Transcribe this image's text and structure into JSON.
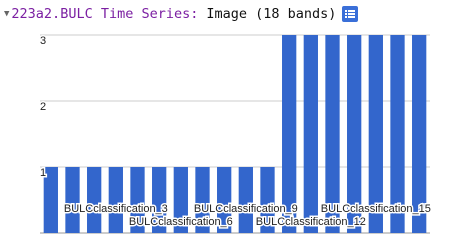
{
  "header": {
    "title": "223a2.BULC Time Series:",
    "description": "Image (18 bands)"
  },
  "chart_data": {
    "type": "bar",
    "categories": [
      null,
      null,
      null,
      "BULCclassification_3",
      null,
      null,
      "BULCclassification_6",
      null,
      null,
      "BULCclassification_9",
      null,
      null,
      "BULCclassification_12",
      null,
      null,
      "BULCclassification_15",
      null,
      null
    ],
    "values": [
      1,
      1,
      1,
      1,
      1,
      1,
      1,
      1,
      1,
      1,
      1,
      3,
      3,
      3,
      3,
      3,
      3,
      3
    ],
    "color": "#3366cc",
    "ylim": [
      0,
      3
    ],
    "yticks": [
      1,
      2,
      3
    ],
    "grid": true
  }
}
